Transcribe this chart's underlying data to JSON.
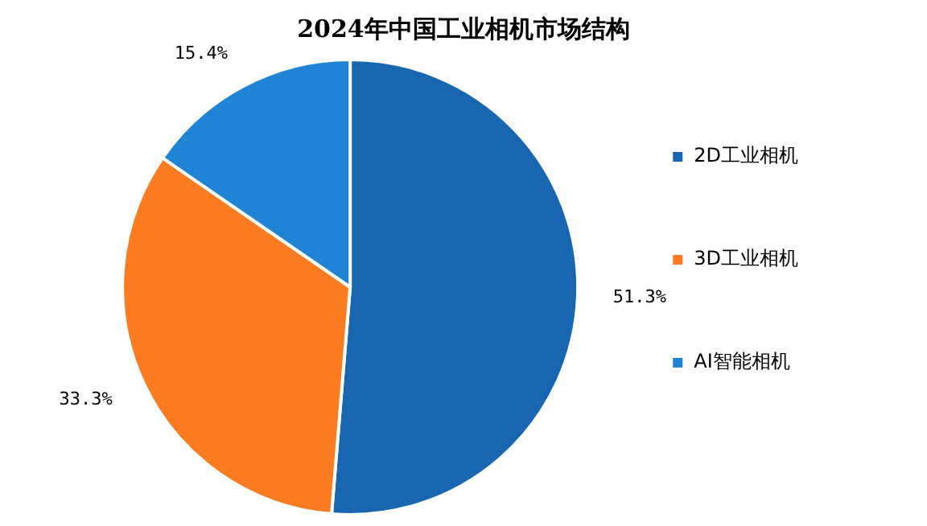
{
  "chart_data": {
    "type": "pie",
    "title": "2024年中国工业相机市场结构",
    "categories": [
      "2D工业相机",
      "3D工业相机",
      "AI智能相机"
    ],
    "values": [
      51.3,
      33.3,
      15.4
    ],
    "value_labels": [
      "51.3%",
      "33.3%",
      "15.4%"
    ],
    "colors": [
      "#1866b0",
      "#fa7b20",
      "#1f83d6"
    ],
    "legend": "right"
  }
}
